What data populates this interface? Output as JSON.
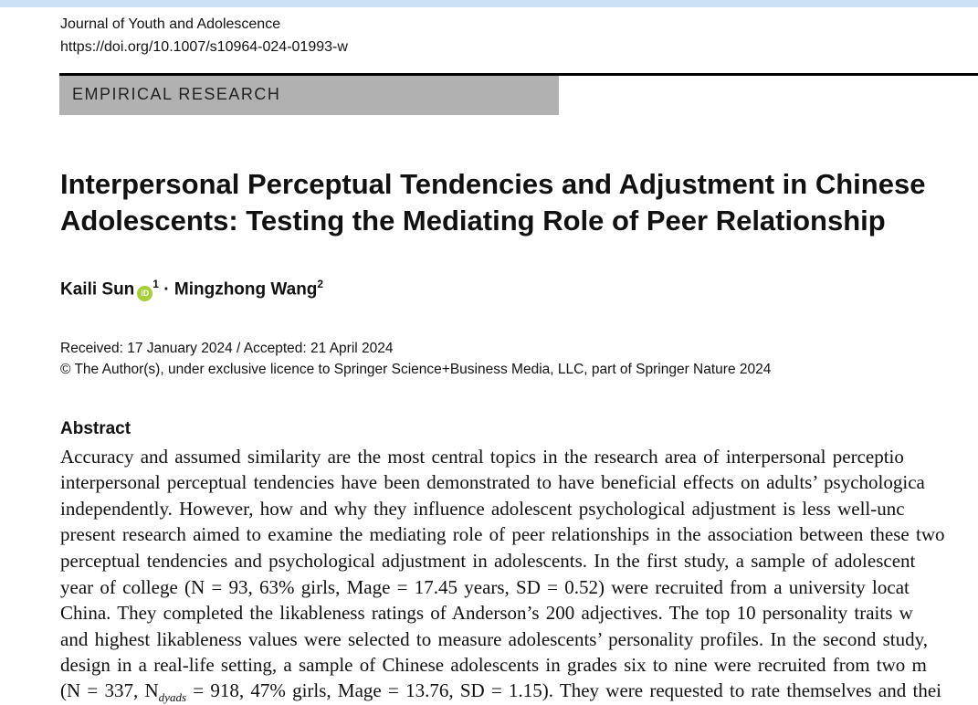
{
  "header": {
    "journal": "Journal of Youth and Adolescence",
    "doi": "https://doi.org/10.1007/s10964-024-01993-w",
    "section": "EMPIRICAL RESEARCH"
  },
  "title": {
    "line1": "Interpersonal Perceptual Tendencies and Adjustment in Chinese",
    "line2": "Adolescents: Testing the Mediating Role of Peer Relationship"
  },
  "authors": [
    {
      "name": "Kaili Sun",
      "affiliation": "1",
      "orcid_icon": "orcid-icon",
      "orcid_label": "iD"
    },
    {
      "name": "Mingzhong Wang",
      "affiliation": "2"
    }
  ],
  "author_separator": "·",
  "dates": "Received: 17 January 2024 / Accepted: 21 April 2024",
  "copyright": "© The Author(s), under exclusive licence to Springer Science+Business Media, LLC, part of Springer Nature 2024",
  "abstract": {
    "heading": "Abstract",
    "lines": [
      "Accuracy and assumed similarity are the most central topics in the research area of interpersonal perceptio",
      "interpersonal perceptual tendencies have been demonstrated to have beneficial effects on adults’ psychologica",
      "independently. However, how and why they influence adolescent psychological adjustment is less well-unc",
      "present research aimed to examine the mediating role of peer relationships in the association between these two",
      "perceptual tendencies and psychological adjustment in adolescents. In the first study, a sample of adolescent",
      "year of college (N = 93, 63% girls, Mage = 17.45 years, SD = 0.52) were recruited from a university locat",
      "China. They completed the likableness ratings of Anderson’s 200 adjectives. The top 10 personality traits w",
      "and highest likableness values were selected to measure adolescents’ personality profiles. In the second study,",
      "design in a real-life setting, a sample of Chinese adolescents in grades six to nine were recruited from two m"
    ],
    "last_line": {
      "pre": "(N = 337, N",
      "sub": "dyads",
      "post": " = 918, 47% girls, Mage = 13.76, SD = 1.15). They were requested to rate themselves and thei"
    }
  }
}
